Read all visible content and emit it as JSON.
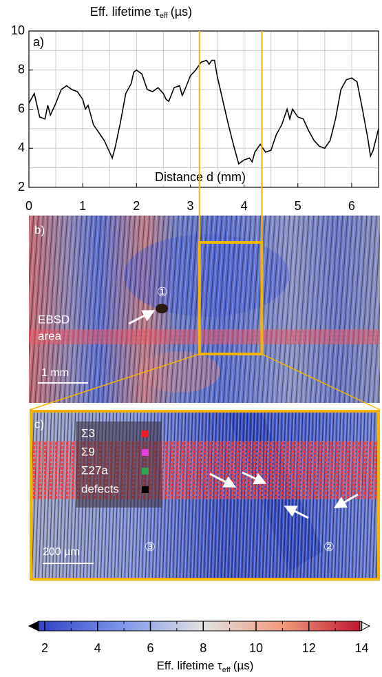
{
  "chart_data": {
    "type": "line",
    "title": {
      "text": "Eff. lifetime τ",
      "subscript": "eff",
      "unit": "(µs)"
    },
    "panel_label": "a)",
    "x_label": "Distance d (mm)",
    "x": [
      0,
      0.1,
      0.2,
      0.3,
      0.35,
      0.4,
      0.5,
      0.6,
      0.7,
      0.8,
      0.9,
      1.0,
      1.05,
      1.1,
      1.2,
      1.3,
      1.4,
      1.5,
      1.55,
      1.6,
      1.7,
      1.8,
      1.9,
      1.95,
      2.0,
      2.1,
      2.2,
      2.3,
      2.4,
      2.5,
      2.55,
      2.6,
      2.7,
      2.8,
      2.85,
      2.9,
      3.0,
      3.1,
      3.2,
      3.3,
      3.35,
      3.4,
      3.45,
      3.5,
      3.6,
      3.7,
      3.8,
      3.9,
      4.0,
      4.1,
      4.15,
      4.2,
      4.3,
      4.4,
      4.5,
      4.6,
      4.7,
      4.8,
      4.85,
      4.9,
      5.0,
      5.1,
      5.2,
      5.3,
      5.4,
      5.5,
      5.6,
      5.7,
      5.8,
      5.9,
      6.0,
      6.1,
      6.2,
      6.3,
      6.35,
      6.4,
      6.5
    ],
    "series": [
      {
        "color": "#000000",
        "values": [
          6.3,
          6.8,
          5.6,
          5.5,
          6.2,
          5.7,
          6.3,
          7.0,
          7.2,
          7.0,
          6.9,
          6.5,
          6.0,
          6.2,
          5.2,
          4.8,
          4.4,
          3.8,
          3.5,
          4.0,
          5.3,
          6.8,
          7.3,
          7.9,
          8.0,
          7.8,
          7.0,
          6.9,
          7.1,
          6.8,
          6.5,
          6.4,
          7.1,
          7.2,
          6.7,
          7.0,
          7.7,
          8.0,
          8.4,
          8.5,
          8.3,
          8.5,
          8.5,
          7.7,
          6.5,
          5.3,
          4.2,
          3.2,
          3.4,
          3.5,
          3.3,
          3.8,
          4.2,
          3.8,
          3.9,
          4.7,
          5.2,
          6.0,
          5.5,
          6.0,
          5.6,
          5.5,
          4.9,
          4.4,
          4.1,
          4.0,
          4.4,
          5.5,
          7.0,
          7.5,
          7.6,
          7.4,
          6.0,
          4.5,
          3.6,
          3.9,
          5.0
        ]
      }
    ],
    "xlim": [
      0,
      6.5
    ],
    "ylim": [
      2,
      10
    ],
    "xticks": [
      0,
      1,
      2,
      3,
      4,
      5,
      6
    ],
    "yticks": [
      2,
      4,
      6,
      8,
      10
    ],
    "minor_xticks": [
      0.5,
      1.5,
      2.5,
      3.5,
      4.5,
      5.5,
      6.5
    ],
    "minor_yticks": [
      3,
      5,
      7,
      9
    ],
    "grid": true,
    "highlight": {
      "x": [
        3.17,
        4.33
      ],
      "color": "#f5b400"
    }
  },
  "panel_b": {
    "label": "b)",
    "site": "①",
    "ebsd": [
      "EBSD",
      "area"
    ],
    "scale": "1 mm"
  },
  "panel_c": {
    "label": "c)",
    "scale": "200 µm",
    "site_3": "③",
    "site_2": "②",
    "legend": [
      {
        "label": "Σ3",
        "color": "#ee1c25"
      },
      {
        "label": "Σ9",
        "color": "#e040e0"
      },
      {
        "label": "Σ27a",
        "color": "#2aa84a"
      },
      {
        "label": "defects",
        "color": "#000000"
      }
    ]
  },
  "colorbar": {
    "lim": [
      1.4,
      14.3
    ],
    "ticks": [
      2,
      4,
      6,
      8,
      10,
      12,
      14
    ],
    "minor_ticks": [
      3,
      5,
      7,
      9,
      11,
      13
    ],
    "label": {
      "text": "Eff. lifetime τ",
      "subscript": "eff",
      "unit": "(µs)"
    },
    "colormap": [
      {
        "value": 2,
        "color": "#3347c8"
      },
      {
        "value": 5,
        "color": "#7d98ea"
      },
      {
        "value": 8,
        "color": "#e2e2e2"
      },
      {
        "value": 11,
        "color": "#f29a7c"
      },
      {
        "value": 14,
        "color": "#c0182e"
      }
    ]
  }
}
